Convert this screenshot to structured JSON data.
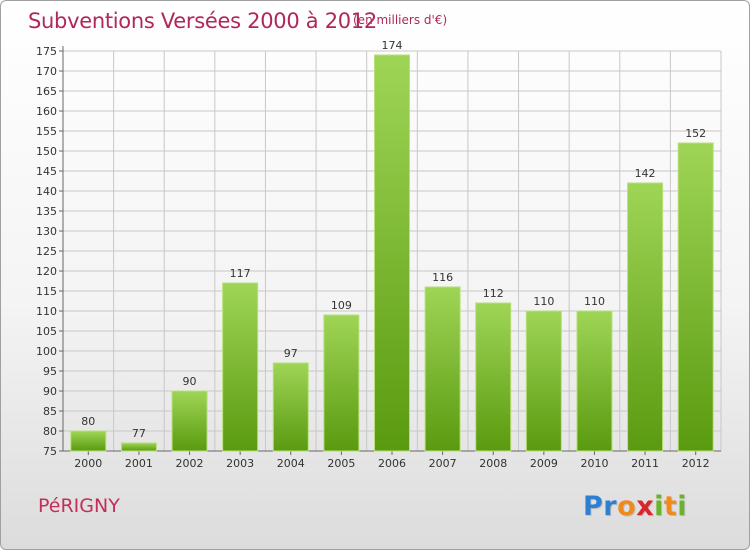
{
  "header": {
    "title": "Subventions Versées 2000 à 2012",
    "subtitle": "(en milliers d'€)"
  },
  "footer": {
    "commune": "PéRIGNY",
    "brand_letters": [
      {
        "ch": "P",
        "color": "#2f7fd0"
      },
      {
        "ch": "r",
        "color": "#2f7fd0"
      },
      {
        "ch": "o",
        "color": "#f08a1c"
      },
      {
        "ch": "x",
        "color": "#d8262c"
      },
      {
        "ch": "i",
        "color": "#6ab42d"
      },
      {
        "ch": "t",
        "color": "#f08a1c"
      },
      {
        "ch": "i",
        "color": "#6ab42d"
      }
    ]
  },
  "colors": {
    "title": "#b0275a",
    "bar_top": "#9fd556",
    "bar_bottom": "#5a9a10",
    "grid": "#c8c8c8",
    "axis_text": "#333333"
  },
  "chart_data": {
    "type": "bar",
    "categories": [
      "2000",
      "2001",
      "2002",
      "2003",
      "2004",
      "2005",
      "2006",
      "2007",
      "2008",
      "2009",
      "2010",
      "2011",
      "2012"
    ],
    "values": [
      80,
      77,
      90,
      117,
      97,
      109,
      174,
      116,
      112,
      110,
      110,
      142,
      152
    ],
    "ylim": [
      75,
      175
    ],
    "ytick_step": 5,
    "grid": true,
    "data_labels": true
  }
}
